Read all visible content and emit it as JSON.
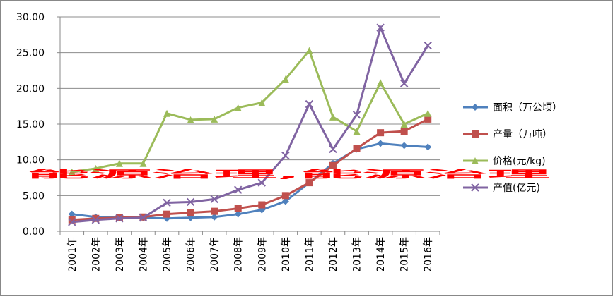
{
  "chart_data": {
    "type": "line",
    "categories": [
      "2001年",
      "2002年",
      "2003年",
      "2004年",
      "2005年",
      "2006年",
      "2007年",
      "2008年",
      "2009年",
      "2010年",
      "2011年",
      "2012年",
      "2013年",
      "2014年",
      "2015年",
      "2016年"
    ],
    "series": [
      {
        "name": "面积（万公顷）",
        "color": "#4f81bd",
        "marker": "diamond",
        "values": [
          2.4,
          2.0,
          2.0,
          1.9,
          1.8,
          1.9,
          2.0,
          2.4,
          3.0,
          4.2,
          6.8,
          9.5,
          11.5,
          12.3,
          12.0,
          11.8
        ]
      },
      {
        "name": "产量（万吨）",
        "color": "#c0504d",
        "marker": "square",
        "values": [
          1.6,
          1.8,
          1.9,
          2.0,
          2.4,
          2.6,
          2.8,
          3.2,
          3.7,
          5.0,
          6.8,
          9.2,
          11.6,
          13.8,
          14.0,
          15.7
        ]
      },
      {
        "name": "价格(元/kg)",
        "color": "#9bbb59",
        "marker": "triangle",
        "values": [
          8.3,
          8.8,
          9.5,
          9.5,
          16.5,
          15.6,
          15.7,
          17.3,
          18.0,
          21.3,
          25.3,
          16.0,
          14.0,
          20.8,
          15.0,
          16.5
        ]
      },
      {
        "name": "产值(亿元)",
        "color": "#8064a2",
        "marker": "x",
        "values": [
          1.3,
          1.6,
          1.8,
          1.9,
          4.0,
          4.1,
          4.5,
          5.8,
          6.8,
          10.6,
          17.8,
          11.5,
          16.3,
          28.5,
          20.7,
          26.0
        ]
      }
    ],
    "ylim": [
      0,
      30
    ],
    "yticks": [
      {
        "value": 0,
        "label": "0.00"
      },
      {
        "value": 5,
        "label": "5.00"
      },
      {
        "value": 10,
        "label": "10.00"
      },
      {
        "value": 15,
        "label": "15.00"
      },
      {
        "value": 20,
        "label": "20.00"
      },
      {
        "value": 25,
        "label": "25.00"
      },
      {
        "value": 30,
        "label": "30.00"
      }
    ],
    "grid": true,
    "legend": "right",
    "annotation": "能源治理,能源治理"
  }
}
